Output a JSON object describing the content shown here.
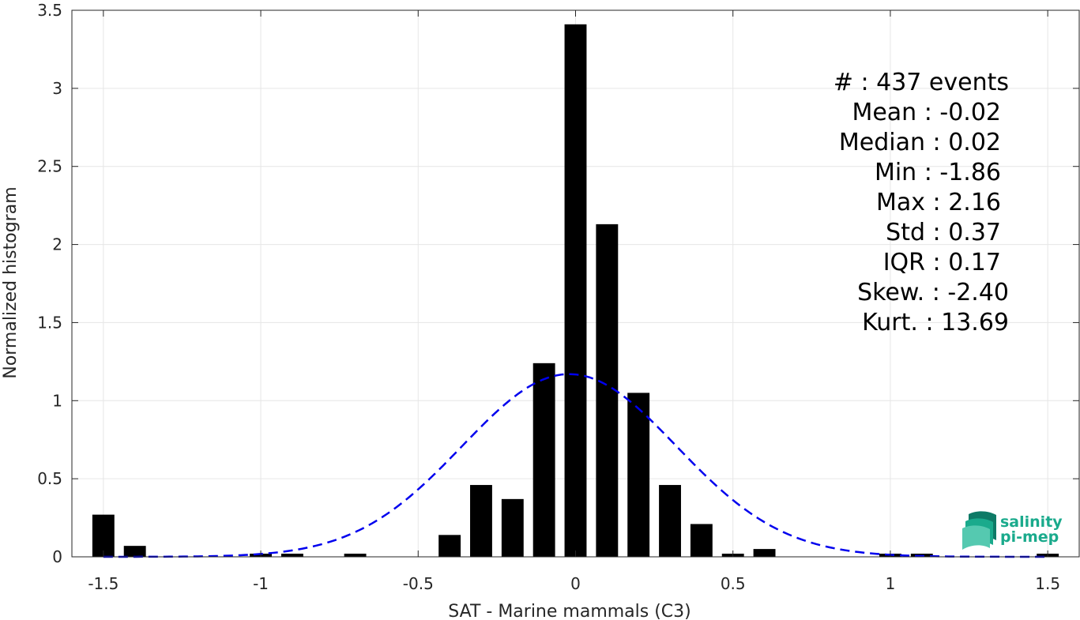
{
  "chart_data": {
    "type": "bar",
    "xlabel": "SAT - Marine mammals (C3)",
    "ylabel": "Normalized histogram",
    "xlim": [
      -1.6,
      1.6
    ],
    "ylim": [
      0,
      3.5
    ],
    "grid": true,
    "x_ticks": [
      -1.5,
      -1,
      -0.5,
      0,
      0.5,
      1,
      1.5
    ],
    "x_tick_labels": [
      "-1.5",
      "-1",
      "-0.5",
      "0",
      "0.5",
      "1",
      "1.5"
    ],
    "y_ticks": [
      0,
      0.5,
      1,
      1.5,
      2,
      2.5,
      3,
      3.5
    ],
    "y_tick_labels": [
      "0",
      "0.5",
      "1",
      "1.5",
      "2",
      "2.5",
      "3",
      "3.5"
    ],
    "bin_width": 0.1,
    "bar_color": "#000000",
    "bars": [
      {
        "x": -1.5,
        "y": 0.27
      },
      {
        "x": -1.4,
        "y": 0.07
      },
      {
        "x": -1.0,
        "y": 0.02
      },
      {
        "x": -0.9,
        "y": 0.02
      },
      {
        "x": -0.7,
        "y": 0.02
      },
      {
        "x": -0.4,
        "y": 0.14
      },
      {
        "x": -0.3,
        "y": 0.46
      },
      {
        "x": -0.2,
        "y": 0.37
      },
      {
        "x": -0.1,
        "y": 1.24
      },
      {
        "x": 0.0,
        "y": 3.41
      },
      {
        "x": 0.1,
        "y": 2.13
      },
      {
        "x": 0.2,
        "y": 1.05
      },
      {
        "x": 0.3,
        "y": 0.46
      },
      {
        "x": 0.4,
        "y": 0.21
      },
      {
        "x": 0.5,
        "y": 0.02
      },
      {
        "x": 0.6,
        "y": 0.05
      },
      {
        "x": 1.0,
        "y": 0.02
      },
      {
        "x": 1.1,
        "y": 0.02
      },
      {
        "x": 1.5,
        "y": 0.02
      }
    ],
    "fit_curve": {
      "type": "normal",
      "mean": -0.02,
      "std": 0.34,
      "peak": 1.17,
      "x_range": [
        -1.5,
        1.5
      ],
      "color": "#0000ee",
      "style": "dashed"
    },
    "annotations": [
      "#  : 437 events",
      "Mean : -0.02",
      "Median : 0.02",
      "Min : -1.86",
      "Max : 2.16",
      "Std : 0.37",
      "IQR : 0.17",
      "Skew. : -2.40",
      "Kurt. : 13.69"
    ],
    "annotation_placement": "top-right"
  },
  "logo": {
    "line1": "salinity",
    "line2": "pi-mep",
    "color": "#1aaa8c",
    "dark_color": "#0e5e50"
  }
}
